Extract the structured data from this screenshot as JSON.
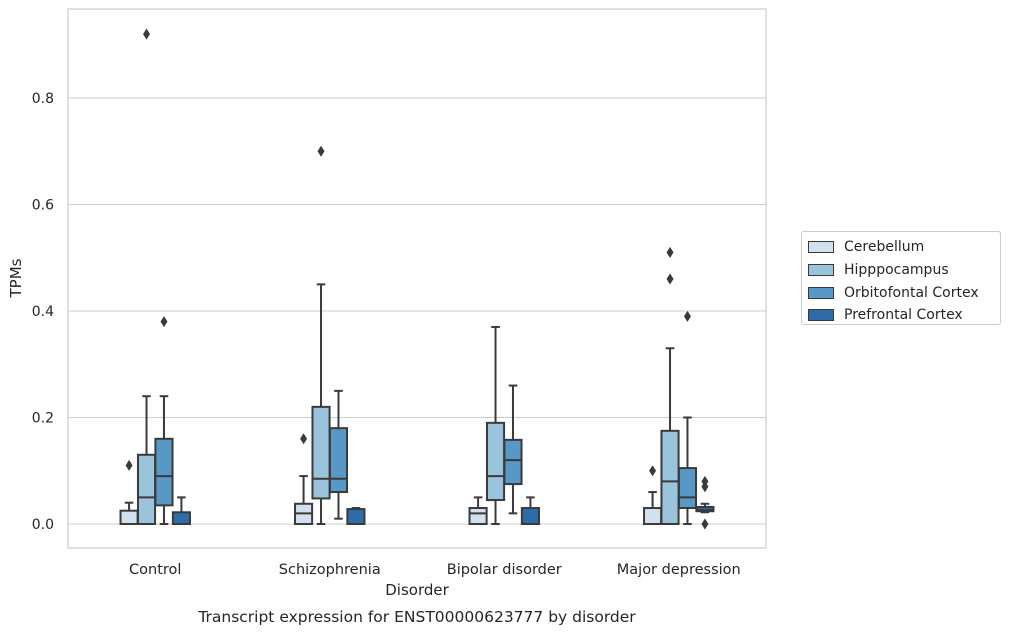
{
  "chart_data": {
    "type": "box",
    "title": "Transcript expression for ENST00000623777 by disorder",
    "xlabel": "Disorder",
    "ylabel": "TPMs",
    "ylim": [
      -0.045,
      0.97
    ],
    "yticks": [
      "0.0",
      "0.2",
      "0.4",
      "0.6",
      "0.8"
    ],
    "grid": "horizontal",
    "legend_position": "right",
    "categories": [
      "Control",
      "Schizophrenia",
      "Bipolar disorder",
      "Major depression"
    ],
    "series": [
      {
        "name": "Cerebellum",
        "color": "#d1e1ef",
        "boxes": [
          {
            "min": 0.0,
            "q1": 0.0,
            "median": 0.0,
            "q3": 0.025,
            "max": 0.04,
            "outliers": [
              0.11
            ]
          },
          {
            "min": 0.0,
            "q1": 0.0,
            "median": 0.02,
            "q3": 0.038,
            "max": 0.09,
            "outliers": [
              0.16
            ]
          },
          {
            "min": 0.0,
            "q1": 0.0,
            "median": 0.02,
            "q3": 0.03,
            "max": 0.05,
            "outliers": []
          },
          {
            "min": 0.0,
            "q1": 0.0,
            "median": 0.0,
            "q3": 0.03,
            "max": 0.06,
            "outliers": [
              0.1
            ]
          }
        ]
      },
      {
        "name": "Hipppocampus",
        "color": "#9ac3dc",
        "boxes": [
          {
            "min": 0.0,
            "q1": 0.0,
            "median": 0.05,
            "q3": 0.13,
            "max": 0.24,
            "outliers": [
              0.92
            ]
          },
          {
            "min": 0.0,
            "q1": 0.048,
            "median": 0.085,
            "q3": 0.22,
            "max": 0.45,
            "outliers": [
              0.7
            ]
          },
          {
            "min": 0.0,
            "q1": 0.045,
            "median": 0.09,
            "q3": 0.19,
            "max": 0.37,
            "outliers": []
          },
          {
            "min": 0.0,
            "q1": 0.0,
            "median": 0.08,
            "q3": 0.175,
            "max": 0.33,
            "outliers": [
              0.46,
              0.51
            ]
          }
        ]
      },
      {
        "name": "Orbitofontal Cortex",
        "color": "#5898c7",
        "boxes": [
          {
            "min": 0.0,
            "q1": 0.035,
            "median": 0.09,
            "q3": 0.16,
            "max": 0.24,
            "outliers": [
              0.38
            ]
          },
          {
            "min": 0.01,
            "q1": 0.06,
            "median": 0.085,
            "q3": 0.18,
            "max": 0.25,
            "outliers": []
          },
          {
            "min": 0.02,
            "q1": 0.075,
            "median": 0.12,
            "q3": 0.158,
            "max": 0.26,
            "outliers": []
          },
          {
            "min": 0.0,
            "q1": 0.03,
            "median": 0.05,
            "q3": 0.105,
            "max": 0.2,
            "outliers": [
              0.39
            ]
          }
        ]
      },
      {
        "name": "Prefrontal Cortex",
        "color": "#2d6ca8",
        "boxes": [
          {
            "min": 0.0,
            "q1": 0.0,
            "median": 0.0,
            "q3": 0.022,
            "max": 0.05,
            "outliers": []
          },
          {
            "min": 0.0,
            "q1": 0.0,
            "median": 0.0,
            "q3": 0.028,
            "max": 0.03,
            "outliers": []
          },
          {
            "min": 0.0,
            "q1": 0.0,
            "median": 0.0,
            "q3": 0.03,
            "max": 0.05,
            "outliers": []
          },
          {
            "min": 0.022,
            "q1": 0.024,
            "median": 0.026,
            "q3": 0.032,
            "max": 0.038,
            "outliers": [
              0.0,
              0.07,
              0.08
            ]
          }
        ]
      }
    ]
  }
}
